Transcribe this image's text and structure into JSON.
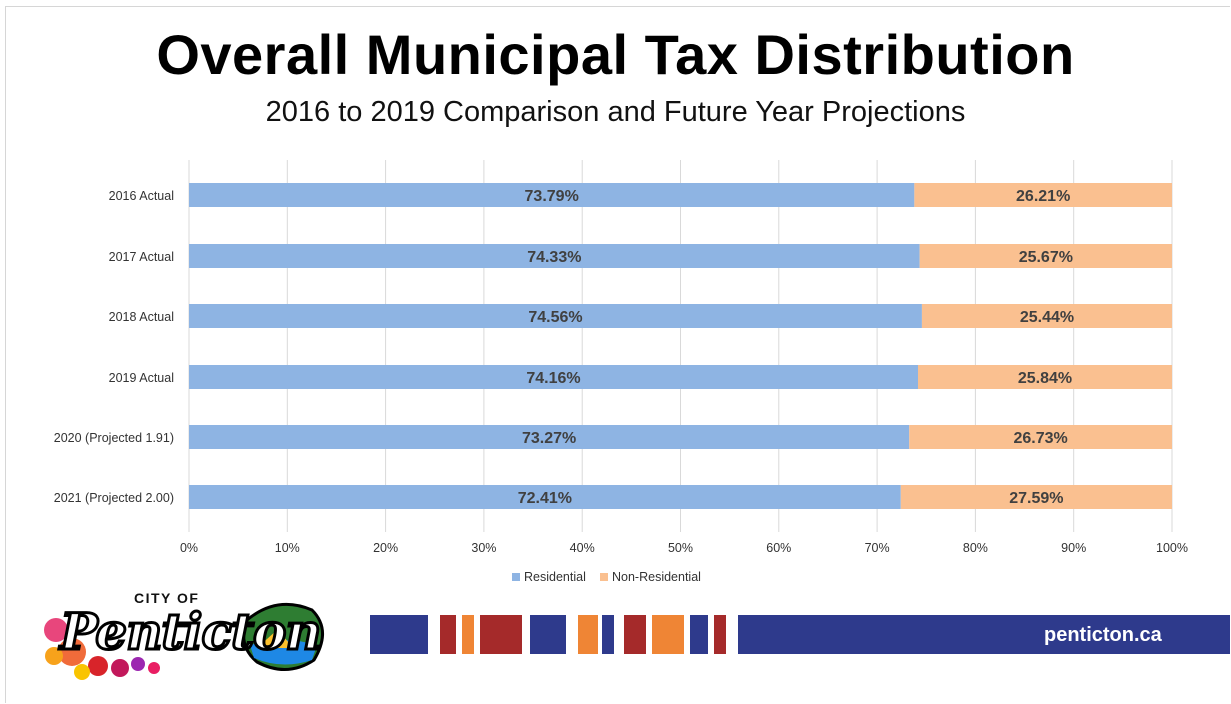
{
  "header": {
    "title": "Overall Municipal Tax Distribution",
    "subtitle": "2016 to 2019 Comparison and Future Year Projections"
  },
  "chart_data": {
    "type": "bar",
    "orientation": "horizontal",
    "stacked": "100%",
    "categories": [
      "2016 Actual",
      "2017 Actual",
      "2018 Actual",
      "2019 Actual",
      "2020 (Projected 1.91)",
      "2021 (Projected 2.00)"
    ],
    "series": [
      {
        "name": "Residential",
        "values": [
          73.79,
          74.33,
          74.56,
          74.16,
          73.27,
          72.41
        ],
        "labels": [
          "73.79%",
          "74.33%",
          "74.56%",
          "74.16%",
          "73.27%",
          "72.41%"
        ],
        "color": "#8eb4e3"
      },
      {
        "name": "Non-Residential",
        "values": [
          26.21,
          25.67,
          25.44,
          25.84,
          26.73,
          27.59
        ],
        "labels": [
          "26.21%",
          "25.67%",
          "25.44%",
          "25.84%",
          "26.73%",
          "27.59%"
        ],
        "color": "#fac090"
      }
    ],
    "xlim": [
      0,
      100
    ],
    "xticks": [
      "0%",
      "10%",
      "20%",
      "30%",
      "40%",
      "50%",
      "60%",
      "70%",
      "80%",
      "90%",
      "100%"
    ],
    "grid": true,
    "legend": "bottom-center"
  },
  "footer": {
    "logo_text": "CITY OF Penticton",
    "url": "penticton.ca",
    "stripe_colors": [
      "#2e3a8c",
      "#a52a2a",
      "#ef8535"
    ]
  }
}
